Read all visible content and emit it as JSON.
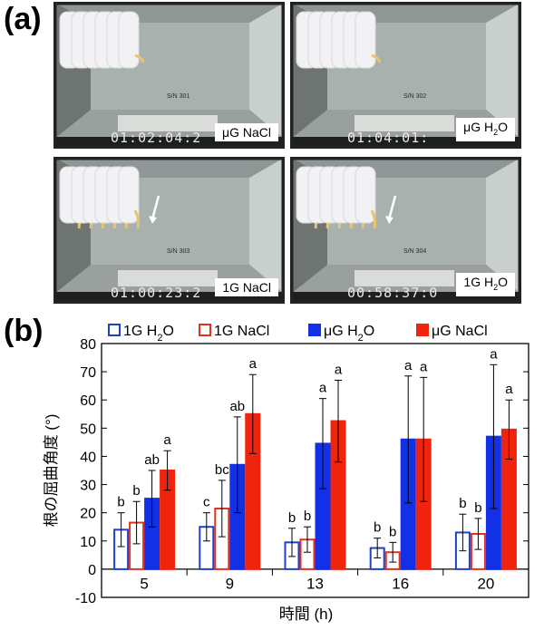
{
  "panel_a": {
    "label": "(a)",
    "photos": [
      {
        "label_parts": [
          "μG NaCl"
        ],
        "timecode": "01:02:04:2",
        "serial": "S/N 301",
        "arrow": false
      },
      {
        "label_parts": [
          "μG H",
          "2",
          "O"
        ],
        "timecode": "01:04:01:",
        "serial": "S/N 302",
        "arrow": false
      },
      {
        "label_parts": [
          "1G NaCl"
        ],
        "timecode": "01:00:23:2",
        "serial": "S/N 303",
        "arrow": true
      },
      {
        "label_parts": [
          "1G H",
          "2",
          "O"
        ],
        "timecode": "00:58:37:0",
        "serial": "S/N 304",
        "arrow": true
      }
    ]
  },
  "panel_b": {
    "label": "(b)"
  },
  "chart_data": {
    "type": "bar",
    "xlabel": "時間 (h)",
    "ylabel": "根の屈曲角度 (°)",
    "ylim": [
      -10,
      80
    ],
    "yticks": [
      -10,
      0,
      10,
      20,
      30,
      40,
      50,
      60,
      70,
      80
    ],
    "categories": [
      "5",
      "9",
      "13",
      "16",
      "20"
    ],
    "legend_position": "top",
    "series": [
      {
        "name_parts": [
          "1G H",
          "2",
          "O"
        ],
        "color": "#1f3fcf",
        "filled": false,
        "values": [
          14,
          15,
          9.5,
          7.5,
          13
        ],
        "err": [
          6,
          5,
          5,
          3.5,
          6.5
        ],
        "labels": [
          "b",
          "c",
          "b",
          "b",
          "b"
        ]
      },
      {
        "name_parts": [
          "1G NaCl"
        ],
        "color": "#e0321f",
        "filled": false,
        "values": [
          16.5,
          21.5,
          10.5,
          6,
          12.5
        ],
        "err": [
          7.5,
          10,
          4.5,
          3.5,
          5.5
        ],
        "labels": [
          "b",
          "bc",
          "b",
          "b",
          "b"
        ]
      },
      {
        "name_parts": [
          "μG H",
          "2",
          "O"
        ],
        "color": "#1230e6",
        "filled": true,
        "values": [
          25,
          37,
          44.5,
          46,
          47
        ],
        "err": [
          10,
          17,
          16,
          22.5,
          25.5
        ],
        "labels": [
          "ab",
          "ab",
          "a",
          "a",
          "a"
        ]
      },
      {
        "name_parts": [
          "μG NaCl"
        ],
        "color": "#f0240d",
        "filled": true,
        "values": [
          35,
          55,
          52.5,
          46,
          49.5
        ],
        "err": [
          7,
          14,
          14.5,
          22,
          10.5
        ],
        "labels": [
          "a",
          "a",
          "a",
          "a",
          "a"
        ]
      }
    ]
  }
}
